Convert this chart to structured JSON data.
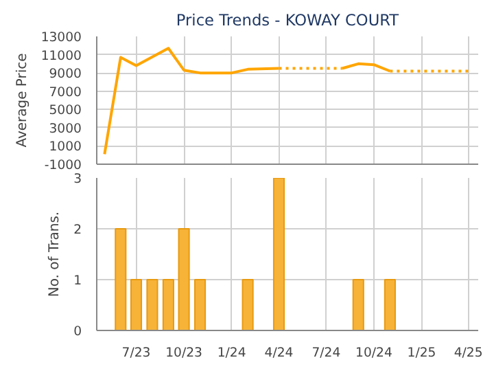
{
  "chart_data": [
    {
      "type": "line",
      "title": "Price Trends - KOWAY COURT",
      "ylabel": "Average Price",
      "xlim": [
        "2023-04-16",
        "2025-04-20"
      ],
      "xticks": [
        {
          "value": "2023-07",
          "label": null
        },
        {
          "value": "2023-10",
          "label": null
        },
        {
          "value": "2024-01",
          "label": null
        },
        {
          "value": "2024-04",
          "label": null
        },
        {
          "value": "2024-07",
          "label": null
        },
        {
          "value": "2024-10",
          "label": null
        },
        {
          "value": "2025-01",
          "label": null
        },
        {
          "value": "2025-04",
          "label": null
        }
      ],
      "ylim": [
        -1000,
        13000
      ],
      "yticks": [
        -1000,
        1000,
        3000,
        5000,
        7000,
        9000,
        11000,
        13000
      ],
      "grid": true,
      "tick_labels": "y",
      "marker": "none",
      "series": [
        {
          "color": "#ffa500",
          "x": [
            "2023-05",
            "2023-06",
            "2023-07",
            "2023-09",
            "2023-10",
            "2023-11",
            "2024-01",
            "2024-02",
            "2024-04",
            "2024-08",
            "2024-09",
            "2024-10",
            "2024-11",
            "2025-04"
          ],
          "values": [
            100,
            10700,
            9800,
            11700,
            9300,
            9000,
            9000,
            9400,
            9500,
            9500,
            10000,
            9900,
            9200,
            9200
          ]
        }
      ]
    },
    {
      "type": "bar",
      "ylabel": "No. of Trans.",
      "xlim": [
        "2023-04-16",
        "2025-04-20"
      ],
      "xticks": [
        {
          "value": "2023-07",
          "label": "7/23"
        },
        {
          "value": "2023-10",
          "label": "10/23"
        },
        {
          "value": "2024-01",
          "label": "1/24"
        },
        {
          "value": "2024-04",
          "label": "4/24"
        },
        {
          "value": "2024-07",
          "label": "7/24"
        },
        {
          "value": "2024-10",
          "label": "10/24"
        },
        {
          "value": "2025-01",
          "label": "1/25"
        },
        {
          "value": "2025-04",
          "label": "4/25"
        }
      ],
      "ylim": [
        0,
        3
      ],
      "yticks": [
        0,
        1,
        2,
        3
      ],
      "grid": true,
      "x": [
        "2023-06",
        "2023-07",
        "2023-08",
        "2023-09",
        "2023-10",
        "2023-11",
        "2024-02",
        "2024-04",
        "2024-09",
        "2024-11"
      ],
      "values": [
        2,
        1,
        1,
        1,
        2,
        1,
        1,
        3,
        1,
        1
      ],
      "color": "#f7b338"
    }
  ]
}
